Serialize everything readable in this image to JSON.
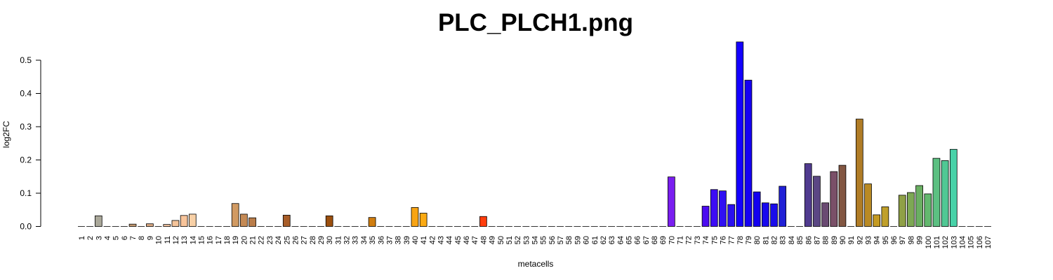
{
  "chart_data": {
    "type": "bar",
    "title": "PLC_PLCH1.png",
    "xlabel": "metacells",
    "ylabel": "log2FC",
    "ylim": [
      0,
      0.56
    ],
    "yticks": [
      0.0,
      0.1,
      0.2,
      0.3,
      0.4,
      0.5
    ],
    "ytick_labels": [
      "0.0",
      "0.1",
      "0.2",
      "0.3",
      "0.4",
      "0.5"
    ],
    "grid": false,
    "categories": [
      "1",
      "2",
      "3",
      "4",
      "5",
      "6",
      "7",
      "8",
      "9",
      "10",
      "11",
      "12",
      "13",
      "14",
      "15",
      "16",
      "17",
      "18",
      "19",
      "20",
      "21",
      "22",
      "23",
      "24",
      "25",
      "26",
      "27",
      "28",
      "29",
      "30",
      "31",
      "32",
      "33",
      "34",
      "35",
      "36",
      "37",
      "38",
      "39",
      "40",
      "41",
      "42",
      "43",
      "44",
      "45",
      "46",
      "47",
      "48",
      "49",
      "50",
      "51",
      "52",
      "53",
      "54",
      "55",
      "56",
      "57",
      "58",
      "59",
      "60",
      "61",
      "62",
      "63",
      "64",
      "65",
      "66",
      "67",
      "68",
      "69",
      "70",
      "71",
      "72",
      "73",
      "74",
      "75",
      "76",
      "77",
      "78",
      "79",
      "80",
      "81",
      "82",
      "83",
      "84",
      "85",
      "86",
      "87",
      "88",
      "89",
      "90",
      "91",
      "92",
      "93",
      "94",
      "95",
      "96",
      "97",
      "98",
      "99",
      "100",
      "101",
      "102",
      "103",
      "104",
      "105",
      "106",
      "107"
    ],
    "values": [
      0,
      0,
      0.032,
      0,
      0,
      0,
      0.007,
      0,
      0.008,
      0,
      0.006,
      0.018,
      0.033,
      0.037,
      0,
      0,
      0,
      0,
      0.069,
      0.037,
      0.026,
      0,
      0,
      0,
      0.034,
      0,
      0,
      0,
      0,
      0.032,
      0,
      0,
      0,
      0,
      0.027,
      0,
      0,
      0,
      0,
      0.057,
      0.04,
      0,
      0,
      0,
      0,
      0,
      0,
      0.03,
      0,
      0,
      0,
      0,
      0,
      0,
      0,
      0,
      0,
      0,
      0,
      0,
      0,
      0,
      0,
      0,
      0,
      0,
      0,
      0,
      0,
      0.149,
      0,
      0,
      0,
      0.061,
      0.111,
      0.107,
      0.066,
      0.555,
      0.44,
      0.104,
      0.071,
      0.068,
      0.121,
      0,
      0,
      0.189,
      0.151,
      0.071,
      0.165,
      0.184,
      0,
      0.323,
      0.128,
      0.035,
      0.059,
      0,
      0.094,
      0.102,
      0.123,
      0.098,
      0.205,
      0.198,
      0.232,
      0,
      0,
      0,
      0
    ],
    "colors": [
      "#e8e8e8",
      "#c9c9c9",
      "#aaa89a",
      "#b3a28c",
      "#c3a486",
      "#c3a486",
      "#c49a72",
      "#e0b98e",
      "#d9a882",
      "#eec59a",
      "#f2c4a0",
      "#f5c49a",
      "#f8c49a",
      "#f8d0a6",
      "#d7a36c",
      "#d7a36c",
      "#d7a36c",
      "#d7a36c",
      "#d19a62",
      "#c58a55",
      "#b97c49",
      "#b36e3a",
      "#ac6a38",
      "#a5602f",
      "#a85d28",
      "#a55a24",
      "#a15420",
      "#9e511c",
      "#9c4f19",
      "#9b4f0e",
      "#a8580f",
      "#b56212",
      "#c26c14",
      "#cc7515",
      "#d07d0f",
      "#de8912",
      "#e6920f",
      "#f19a0f",
      "#f4a10e",
      "#f8a414",
      "#fbaa13",
      "#ff9b00",
      "#ff8c00",
      "#ff7d00",
      "#ff6c00",
      "#ff5a00",
      "#ff4900",
      "#ff3d0c",
      "#f5300f",
      "#e92e1f",
      "#dd2d33",
      "#d02c47",
      "#c42b5c",
      "#b82a70",
      "#ac2985",
      "#a02899",
      "#9427ad",
      "#8826c1",
      "#7c25d5",
      "#8826e0",
      "#8a2be2",
      "#8a2be2",
      "#8a2be2",
      "#8a2be2",
      "#8a2be2",
      "#8a2be2",
      "#8a2be2",
      "#8a2be2",
      "#8a2be2",
      "#7a1ef0",
      "#6a14f5",
      "#5a0af8",
      "#4a06fb",
      "#4b0bf0",
      "#3d0cf5",
      "#3010f2",
      "#2a10f0",
      "#1400ff",
      "#1600f2",
      "#1400f0",
      "#1809ee",
      "#1a0cea",
      "#2020d6",
      "#2a2ad0",
      "#3a38a6",
      "#503b8f",
      "#5b4784",
      "#6a4a72",
      "#7a5068",
      "#825642",
      "#8d6534",
      "#b07c26",
      "#b98a24",
      "#c49a22",
      "#c0a02a",
      "#a8a038",
      "#8fa046",
      "#7da854",
      "#6aaf62",
      "#63b86e",
      "#5cc082",
      "#50c894",
      "#48d2a8",
      "#40d8b8",
      "#38e0c8",
      "#30e8d8",
      "#28f0e8"
    ],
    "bar_colors_used": [
      "#e8e8e8",
      "#c9c9c9",
      "#aaa89a",
      "#b3a28c",
      "#c3a486",
      "#c3a486",
      "#c49a72",
      "#e0b98e",
      "#d9a882",
      "#eec59a",
      "#f2c4a0",
      "#f5c49a",
      "#f8c49a",
      "#f8d0a6",
      "#d7a36c",
      "#d7a36c",
      "#d7a36c",
      "#d7a36c",
      "#d19a62",
      "#c58a55",
      "#b97c49",
      "#b36e3a",
      "#ac6a38",
      "#a5602f",
      "#a85d28",
      "#a55a24",
      "#a15420",
      "#9e511c",
      "#9c4f19",
      "#9b4f0e",
      "#a8580f",
      "#b56212",
      "#c26c14",
      "#cc7515",
      "#d07d0f",
      "#de8912",
      "#e6920f",
      "#f19a0f",
      "#f4a10e",
      "#f8a414",
      "#fbaa13",
      "#ff9b00",
      "#ff8c00",
      "#ff7d00",
      "#ff6c00",
      "#ff5a00",
      "#ff4900",
      "#ff3d0c",
      "#f5300f",
      "#e92e1f",
      "#dd2d33",
      "#d02c47",
      "#c42b5c",
      "#b82a70",
      "#ac2985",
      "#a02899",
      "#9427ad",
      "#8826c1",
      "#7c25d5",
      "#8826e0",
      "#8a2be2",
      "#8a2be2",
      "#8a2be2",
      "#8a2be2",
      "#8a2be2",
      "#8a2be2",
      "#8a2be2",
      "#8a2be2",
      "#8a2be2",
      "#7a1ef0",
      "#6a14f5",
      "#5a0af8",
      "#4a06fb",
      "#4b0bf0",
      "#3d0cf5",
      "#3010f2",
      "#2a10f0",
      "#1400ff",
      "#1600f2",
      "#1400f0",
      "#1809ee",
      "#1a0cea",
      "#2020d6",
      "#2a2ad0",
      "#3a38a6",
      "#503b8f",
      "#5b4784",
      "#6a4a72",
      "#7a5068",
      "#825642",
      "#8d6534",
      "#b07c26",
      "#b98a24",
      "#c49a22",
      "#c0a02a",
      "#a8a038",
      "#8fa046",
      "#7da854",
      "#6aaf62",
      "#63b86e",
      "#5cc082",
      "#50c894",
      "#48d2a8",
      "#40d8b8",
      "#38e0c8",
      "#30e8d8",
      "#28f0e8"
    ]
  }
}
